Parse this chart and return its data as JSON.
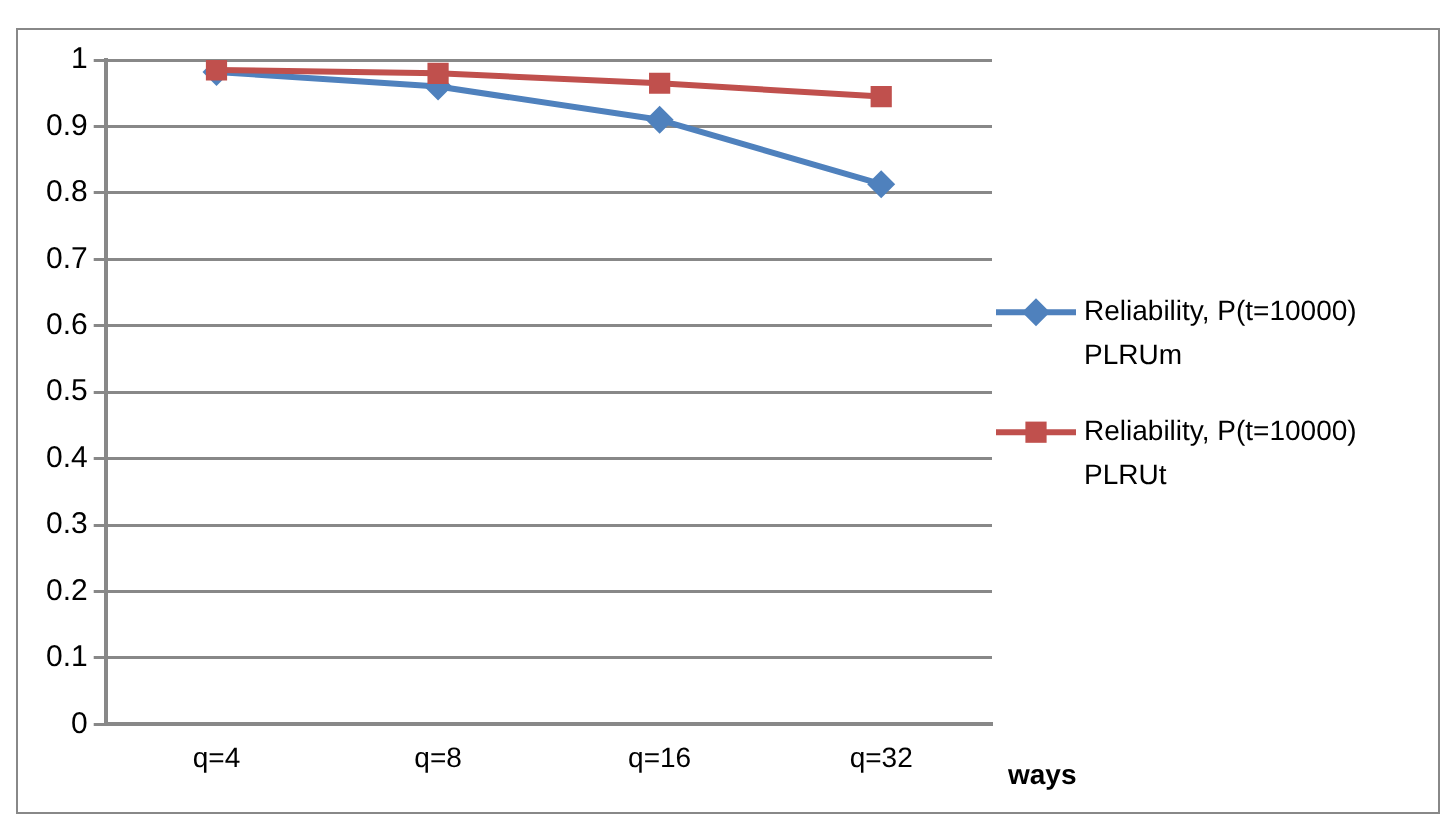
{
  "chart_data": {
    "type": "line",
    "categories": [
      "q=4",
      "q=8",
      "q=16",
      "q=32"
    ],
    "xlabel": "ways",
    "series": [
      {
        "name": "Reliability, P(t=10000) PLRUm",
        "color": "#4f81bd",
        "values": [
          0.982,
          0.96,
          0.91,
          0.813
        ],
        "marker": "diamond"
      },
      {
        "name": "Reliability, P(t=10000) PLRUt",
        "color": "#c0504d",
        "values": [
          0.985,
          0.98,
          0.965,
          0.945
        ],
        "marker": "square"
      }
    ],
    "ylim": [
      0,
      1
    ],
    "yticks": [
      0,
      0.1,
      0.2,
      0.3,
      0.4,
      0.5,
      0.6,
      0.7,
      0.8,
      0.9,
      1
    ],
    "grid": "y",
    "legend": "right"
  }
}
